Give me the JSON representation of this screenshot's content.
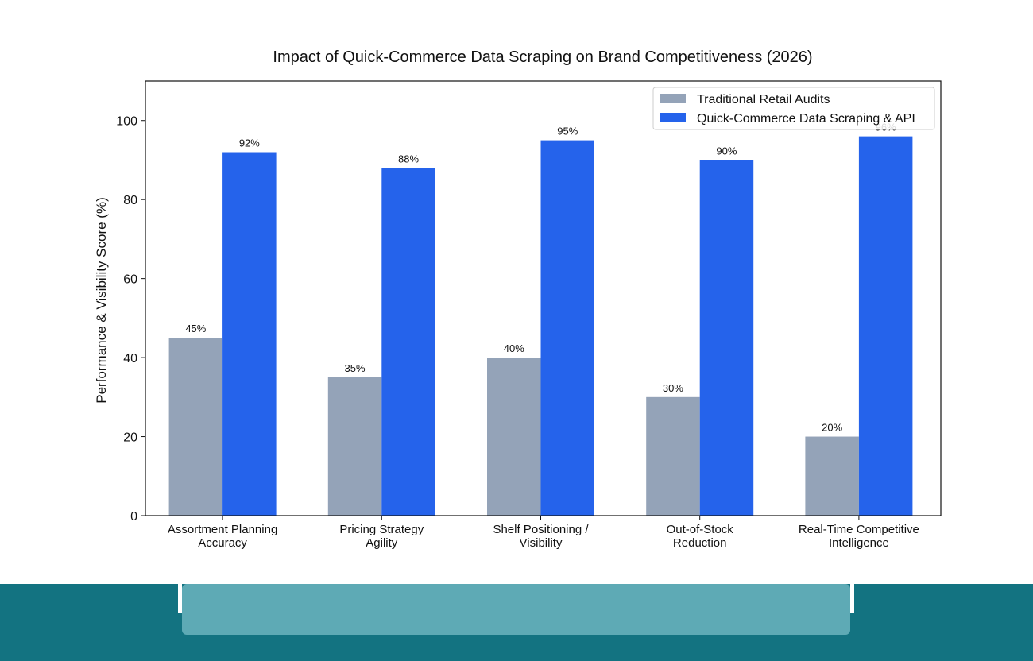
{
  "colors": {
    "traditional": "#94a3b8",
    "scraping": "#2563eb",
    "footer_dark": "#137381",
    "footer_light": "#5eaab5"
  },
  "chart_data": {
    "type": "bar",
    "title": "Impact of Quick-Commerce Data Scraping on Brand Competitiveness (2026)",
    "xlabel": "",
    "ylabel": "Performance & Visibility Score (%)",
    "ylim": [
      0,
      110
    ],
    "yticks": [
      0,
      20,
      40,
      60,
      80,
      100
    ],
    "categories": [
      [
        "Assortment Planning",
        "Accuracy"
      ],
      [
        "Pricing Strategy",
        "Agility"
      ],
      [
        "Shelf Positioning /",
        "Visibility"
      ],
      [
        "Out-of-Stock",
        "Reduction"
      ],
      [
        "Real-Time Competitive",
        "Intelligence"
      ]
    ],
    "series": [
      {
        "name": "Traditional Retail Audits",
        "values": [
          45,
          35,
          40,
          30,
          20
        ],
        "labels": [
          "45%",
          "35%",
          "40%",
          "30%",
          "20%"
        ]
      },
      {
        "name": "Quick-Commerce Data Scraping & API",
        "values": [
          92,
          88,
          95,
          90,
          96
        ],
        "labels": [
          "92%",
          "88%",
          "95%",
          "90%",
          "96%"
        ]
      }
    ],
    "legend": "top-right",
    "grid": false
  }
}
